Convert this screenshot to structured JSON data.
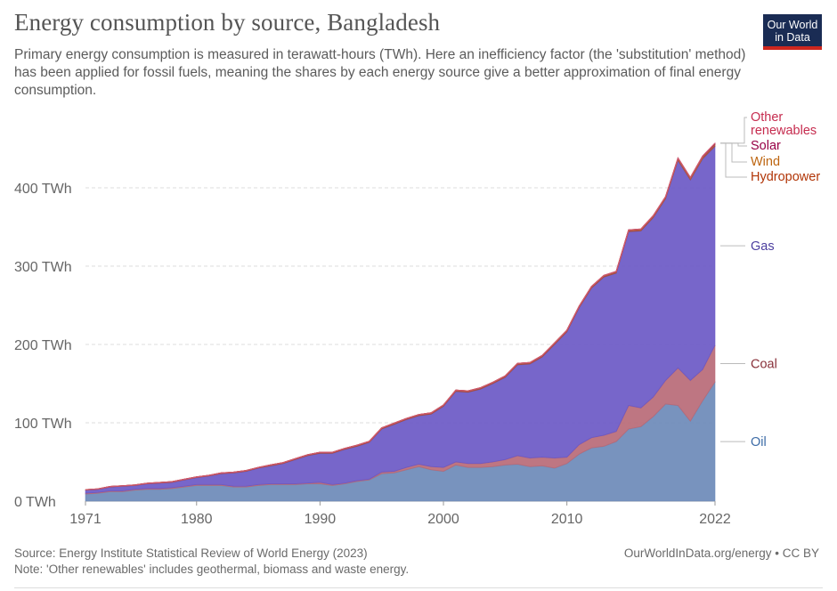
{
  "header": {
    "title": "Energy consumption by source, Bangladesh",
    "subtitle": "Primary energy consumption is measured in terawatt-hours (TWh). Here an inefficiency factor (the 'substitution' method) has been applied for fossil fuels, meaning the shares by each energy source give a better approximation of final energy consumption."
  },
  "logo": {
    "line1": "Our World",
    "line2": "in Data",
    "bg": "#1a2c54",
    "accent": "#ce261e"
  },
  "footer": {
    "source": "Source: Energy Institute Statistical Review of World Energy (2023)",
    "note": "Note: 'Other renewables' includes geothermal, biomass and waste energy.",
    "credit": "OurWorldInData.org/energy • CC BY"
  },
  "chart_data": {
    "type": "area",
    "stacked": true,
    "title": "Energy consumption by source, Bangladesh",
    "x": [
      1971,
      1972,
      1973,
      1974,
      1975,
      1976,
      1977,
      1978,
      1979,
      1980,
      1981,
      1982,
      1983,
      1984,
      1985,
      1986,
      1987,
      1988,
      1989,
      1990,
      1991,
      1992,
      1993,
      1994,
      1995,
      1996,
      1997,
      1998,
      1999,
      2000,
      2001,
      2002,
      2003,
      2004,
      2005,
      2006,
      2007,
      2008,
      2009,
      2010,
      2011,
      2012,
      2013,
      2014,
      2015,
      2016,
      2017,
      2018,
      2019,
      2020,
      2021,
      2022
    ],
    "xlim": [
      1971,
      2022
    ],
    "xticks": [
      "1971",
      "1980",
      "1990",
      "2000",
      "2010",
      "2022"
    ],
    "ylim": [
      0,
      500
    ],
    "yticks": [
      {
        "value": 0,
        "label": "0 TWh"
      },
      {
        "value": 100,
        "label": "100 TWh"
      },
      {
        "value": 200,
        "label": "200 TWh"
      },
      {
        "value": 300,
        "label": "300 TWh"
      },
      {
        "value": 400,
        "label": "400 TWh"
      }
    ],
    "grid": true,
    "legend": "right-inline",
    "series": [
      {
        "name": "Oil",
        "color": "#6d8ab9",
        "label_color": "#3c6ba6",
        "values": [
          9,
          10,
          12,
          12,
          14,
          15,
          15,
          16,
          18,
          20,
          20,
          20,
          18,
          18,
          20,
          21,
          21,
          21,
          22,
          22,
          20,
          22,
          25,
          27,
          35,
          36,
          40,
          44,
          40,
          38,
          46,
          43,
          43,
          44,
          46,
          47,
          44,
          45,
          42,
          48,
          60,
          68,
          70,
          76,
          92,
          95,
          108,
          124,
          122,
          102,
          128,
          152
        ]
      },
      {
        "name": "Coal",
        "color": "#b96a77",
        "label_color": "#883039",
        "values": [
          1,
          1,
          1,
          1,
          1,
          1,
          1,
          1,
          1,
          1,
          1,
          1,
          1,
          1,
          1,
          1,
          1,
          1,
          1,
          2,
          1,
          1,
          1,
          1,
          2,
          2,
          3,
          3,
          4,
          5,
          4,
          5,
          5,
          6,
          7,
          11,
          11,
          11,
          13,
          8,
          12,
          13,
          14,
          13,
          30,
          24,
          25,
          30,
          48,
          52,
          40,
          47
        ]
      },
      {
        "name": "Gas",
        "color": "#6b59c6",
        "label_color": "#4c3e9f",
        "values": [
          4,
          4,
          5,
          6,
          5,
          6,
          7,
          7,
          8,
          9,
          11,
          14,
          17,
          19,
          21,
          23,
          26,
          31,
          35,
          37,
          40,
          43,
          44,
          47,
          55,
          60,
          61,
          62,
          67,
          78,
          90,
          91,
          95,
          100,
          105,
          116,
          120,
          128,
          145,
          160,
          175,
          191,
          202,
          202,
          222,
          226,
          229,
          232,
          265,
          256,
          269,
          254
        ]
      },
      {
        "name": "Hydropower",
        "color": "#a84d3a",
        "label_color": "#b13507",
        "values": [
          0.6,
          0.6,
          0.6,
          0.6,
          0.6,
          0.7,
          0.7,
          0.8,
          0.8,
          0.8,
          0.8,
          0.9,
          0.9,
          1,
          1,
          1.1,
          1.1,
          1.2,
          1.2,
          1.3,
          1.3,
          1.3,
          1.4,
          1.4,
          1.4,
          1.5,
          1.5,
          1.5,
          1.6,
          1.6,
          1.6,
          1.7,
          1.7,
          1.7,
          1.8,
          1.8,
          1.8,
          1.9,
          1.9,
          1.9,
          2,
          2,
          2,
          2,
          2,
          2,
          2.1,
          2.1,
          2.1,
          2.1,
          2.2,
          2.2
        ]
      },
      {
        "name": "Wind",
        "color": "#d08a37",
        "label_color": "#bd6510",
        "values": [
          0,
          0,
          0,
          0,
          0,
          0,
          0,
          0,
          0,
          0,
          0,
          0,
          0,
          0,
          0,
          0,
          0,
          0,
          0,
          0,
          0,
          0,
          0,
          0,
          0,
          0,
          0,
          0,
          0,
          0,
          0,
          0,
          0,
          0,
          0,
          0,
          0,
          0,
          0,
          0,
          0,
          0,
          0,
          0,
          0,
          0,
          0,
          0.1,
          0.1,
          0.1,
          0.1,
          0.1
        ]
      },
      {
        "name": "Solar",
        "color": "#8c1d5a",
        "label_color": "#970046",
        "values": [
          0,
          0,
          0,
          0,
          0,
          0,
          0,
          0,
          0,
          0,
          0,
          0,
          0,
          0,
          0,
          0,
          0,
          0,
          0,
          0,
          0,
          0,
          0,
          0,
          0,
          0,
          0,
          0,
          0,
          0,
          0,
          0,
          0,
          0,
          0,
          0,
          0,
          0,
          0,
          0,
          0,
          0.1,
          0.2,
          0.3,
          0.3,
          0.4,
          0.5,
          0.6,
          0.8,
          1,
          1.2,
          1.5
        ]
      },
      {
        "name": "Other renewables",
        "color": "#d35b6e",
        "label_color": "#c62c4f",
        "label_lines": [
          "Other",
          "renewables"
        ],
        "values": [
          0,
          0,
          0,
          0,
          0,
          0,
          0,
          0,
          0,
          0,
          0,
          0,
          0,
          0,
          0,
          0,
          0,
          0,
          0,
          0,
          0,
          0,
          0,
          0,
          0,
          0,
          0,
          0,
          0,
          0,
          0,
          0,
          0,
          0,
          0,
          0,
          0,
          0,
          0,
          0,
          0,
          0,
          0,
          0,
          0,
          0,
          0,
          0,
          0,
          0,
          0,
          0.1
        ]
      }
    ]
  }
}
